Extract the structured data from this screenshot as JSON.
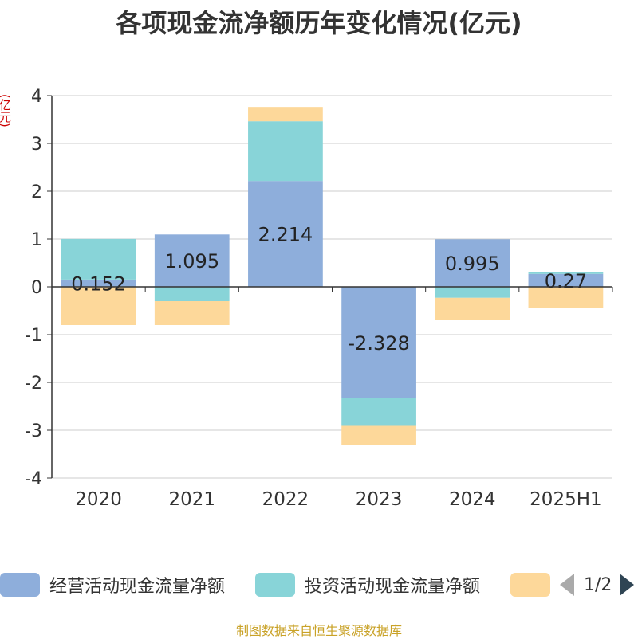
{
  "chart_data": {
    "type": "bar",
    "stacked": true,
    "title": "各项现金流净额历年变化情况(亿元)",
    "ylabel": "(亿元)",
    "categories": [
      "2020",
      "2021",
      "2022",
      "2023",
      "2024",
      "2025H1"
    ],
    "yticks": [
      "4",
      "3",
      "2",
      "1",
      "0",
      "-1",
      "-2",
      "-3",
      "-4"
    ],
    "ylim": [
      -4,
      4
    ],
    "grid": true,
    "legend_position": "bottom",
    "series": [
      {
        "name": "经营活动现金流量净额",
        "color": "#8eaedb",
        "values": [
          0.152,
          1.095,
          2.214,
          -2.328,
          0.995,
          0.27
        ],
        "labels": [
          "0.152",
          "1.095",
          "2.214",
          "-2.328",
          "0.995",
          "0.27"
        ]
      },
      {
        "name": "投资活动现金流量净额",
        "color": "#88d4d8",
        "values": [
          0.85,
          -0.3,
          1.25,
          -0.58,
          -0.23,
          0.03
        ]
      },
      {
        "name": "",
        "color": "#fdd89a",
        "values": [
          -0.8,
          -0.5,
          0.3,
          -0.4,
          -0.47,
          -0.45
        ]
      }
    ]
  },
  "legend": {
    "pager_label": "1/2"
  },
  "source": "制图数据来自恒生聚源数据库"
}
